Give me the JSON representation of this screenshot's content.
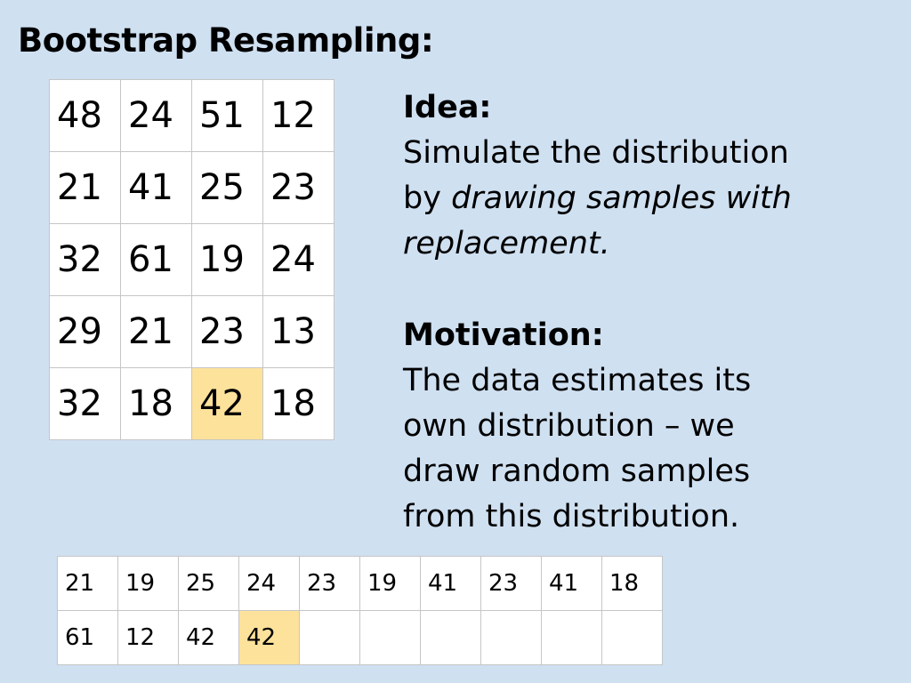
{
  "title": "Bootstrap Resampling:",
  "data_grid": [
    [
      "48",
      "24",
      "51",
      "12"
    ],
    [
      "21",
      "41",
      "25",
      "23"
    ],
    [
      "32",
      "61",
      "19",
      "24"
    ],
    [
      "29",
      "21",
      "23",
      "13"
    ],
    [
      "32",
      "18",
      "42",
      "18"
    ]
  ],
  "sample_grid": [
    [
      "21",
      "19",
      "25",
      "24",
      "23",
      "19",
      "41",
      "23",
      "41",
      "18"
    ],
    [
      "61",
      "12",
      "42",
      "42",
      "",
      "",
      "",
      "",
      "",
      ""
    ]
  ],
  "highlight_color": "#fde29c",
  "background_color": "#cfe0f1",
  "idea": {
    "heading": "Idea:",
    "line1": "Simulate the distribution",
    "line2_plain": "by ",
    "line2_italic": "drawing samples with",
    "line3_italic": "replacement."
  },
  "motivation": {
    "heading": "Motivation:",
    "line1": "The data estimates its",
    "line2": "own distribution – we",
    "line3": "draw random samples",
    "line4": "from this distribution."
  }
}
